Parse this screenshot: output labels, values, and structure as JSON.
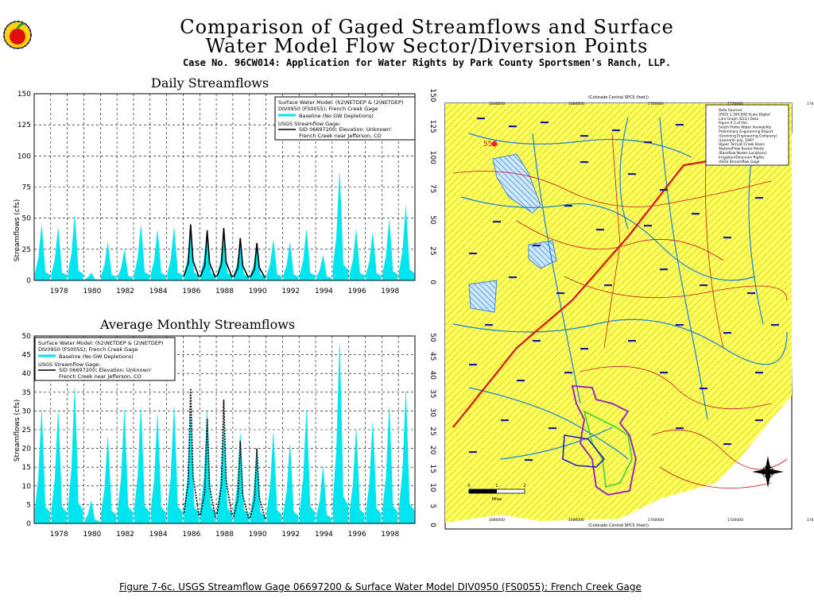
{
  "header": {
    "title_line1": "Comparison of Gaged Streamflows and Surface",
    "title_line2": "Water Model Flow Sector/Diversion Points",
    "case": "Case No. 96CW014: Application for Water Rights by Park County Sportsmen's Ranch, LLP."
  },
  "caption": "Figure 7-6c. USGS Streamflow Gage 06697200 & Surface Water Model DIV0950 (FS0055); French Creek Gage",
  "colors": {
    "baseline": "#00e5ee",
    "gage": "#000000",
    "grid": "#000000",
    "map_fill": "#ffff99"
  },
  "chart_data": [
    {
      "type": "area",
      "title": "Daily Streamflows",
      "ylabel": "Streamflows (cfs)",
      "ylim": [
        0,
        150
      ],
      "yticks": [
        0,
        25,
        50,
        75,
        100,
        125,
        150
      ],
      "xlim": [
        1977,
        2000
      ],
      "xticks": [
        1978,
        1980,
        1982,
        1984,
        1986,
        1988,
        1990,
        1992,
        1994,
        1996,
        1998
      ],
      "grid": true,
      "legend_position": "top-right",
      "legend": {
        "model_label": "Surface Water Model: (h2\\NETDEP & (2\\NETDEP)",
        "model_sub": "DIV0950 (FS0055); French Creek Gage",
        "baseline": "Baseline (No GW Depletions)",
        "gage_label": "USGS Streamflow Gage:",
        "gage_sub1": "SID 06697200; Elevation: Unknown'",
        "gage_sub2": "French Creek near Jefferson, CO"
      },
      "series": [
        {
          "name": "Baseline (No GW Depletions)",
          "style": "area",
          "x": [
            1977.5,
            1978.5,
            1979.5,
            1980.5,
            1981.5,
            1982.5,
            1983.5,
            1984.5,
            1985.5,
            1986.5,
            1987.5,
            1988.5,
            1989.5,
            1990.5,
            1991.5,
            1992.5,
            1993.5,
            1994.5,
            1995.5,
            1996.5,
            1997.5,
            1998.5,
            1999.5
          ],
          "values": [
            44,
            42,
            52,
            6,
            30,
            24,
            44,
            40,
            42,
            40,
            41,
            38,
            32,
            30,
            32,
            30,
            40,
            20,
            86,
            40,
            38,
            48,
            59
          ]
        },
        {
          "name": "USGS Streamflow Gage",
          "style": "line",
          "x": [
            1986.5,
            1987.5,
            1988.5,
            1989.5,
            1990.5
          ],
          "values": [
            45,
            40,
            42,
            34,
            30
          ]
        }
      ]
    },
    {
      "type": "area",
      "title": "Average Monthly Streamflows",
      "ylabel": "Streamflows (cfs)",
      "ylim": [
        0,
        50
      ],
      "yticks": [
        0,
        5,
        10,
        15,
        20,
        25,
        30,
        35,
        40,
        45,
        50
      ],
      "xlim": [
        1977,
        2000
      ],
      "xticks": [
        1978,
        1980,
        1982,
        1984,
        1986,
        1988,
        1990,
        1992,
        1994,
        1996,
        1998
      ],
      "grid": true,
      "legend_position": "top-left",
      "legend": {
        "model_label": "Surface Water Model: (h2\\NETDEP & (2\\NETDEP)",
        "model_sub": "DIV0950 (FS0055); French Creek Gage",
        "baseline": "Baseline (No GW Depletions)",
        "gage_label": "USGS Streamflow Gage:",
        "gage_sub1": "SID 06697200; Elevation: Unknown'",
        "gage_sub2": "French Creek near Jefferson, CO"
      },
      "series": [
        {
          "name": "Baseline (No GW Depletions)",
          "style": "area",
          "x": [
            1977.5,
            1978.5,
            1979.5,
            1980.5,
            1981.5,
            1982.5,
            1983.5,
            1984.5,
            1985.5,
            1986.5,
            1987.5,
            1988.5,
            1989.5,
            1990.5,
            1991.5,
            1992.5,
            1993.5,
            1994.5,
            1995.5,
            1996.5,
            1997.5,
            1998.5,
            1999.5
          ],
          "values": [
            30,
            30,
            36,
            6,
            23,
            30,
            31,
            29,
            31,
            29,
            30,
            27,
            24,
            20,
            24,
            21,
            30,
            15,
            48,
            25,
            27,
            31,
            35
          ]
        },
        {
          "name": "USGS Streamflow Gage",
          "style": "dashed",
          "x": [
            1986.5,
            1987.5,
            1988.5,
            1989.5,
            1990.5
          ],
          "values": [
            36,
            28,
            33,
            22,
            20
          ]
        }
      ]
    }
  ],
  "map": {
    "right_axis_labels": [
      "150",
      "125",
      "100",
      "75",
      "50",
      "25",
      "0"
    ],
    "left_axis_labels": [
      "50",
      "45",
      "40",
      "35",
      "30",
      "25",
      "20",
      "15",
      "10",
      "5",
      "0"
    ],
    "top_coord_label": "(Colorado Central SPCS (feet))",
    "bottom_coord_label": "(Colorado Central SPCS (feet))",
    "top_ticks": [
      "1660000",
      "1680000",
      "1700000",
      "1720000",
      "1740000"
    ],
    "bottom_ticks": [
      "1660000",
      "1680000",
      "1700000",
      "1720000",
      "1740000"
    ],
    "marker_label": "55",
    "scale_labels": [
      "0",
      "1",
      "2"
    ],
    "scale_unit": "Miles",
    "legend_lines": [
      "Data Sources:",
      "USGS 1:100,000 Scale Digital",
      "Line Graph (DLG) Data",
      "Figure 4.2 of the",
      "South Platte Water Availability",
      "Preliminary Engineering Report",
      "(Gronning Engineering Company)",
      "(Leonard) July, 1997",
      "Upper Tarryall Creek Basin",
      "Station/Flow Sector Points",
      "(Baseflow Nodes Locations)",
      "Irrigation/Diversion Rights",
      "USGS Streamflow Gage"
    ]
  }
}
